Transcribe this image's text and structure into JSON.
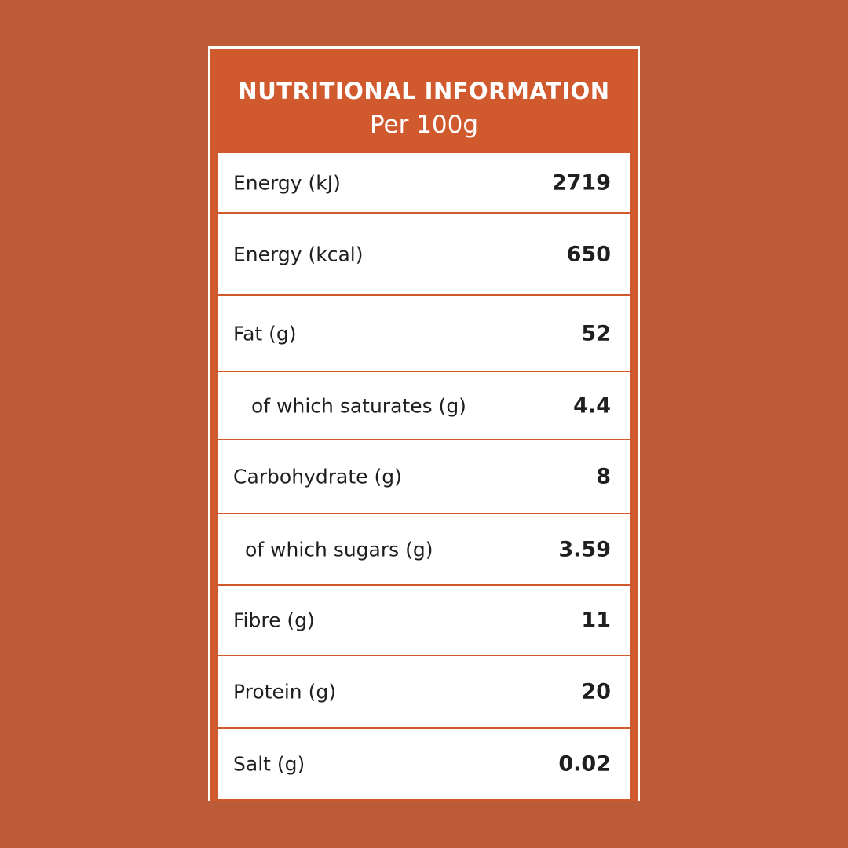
{
  "header": {
    "title": "NUTRITIONAL INFORMATION",
    "subtitle": "Per 100g"
  },
  "rows": [
    {
      "label": "Energy (kJ)",
      "value": "2719"
    },
    {
      "label": "Energy (kcal)",
      "value": "650"
    },
    {
      "label": "Fat (g)",
      "value": "52"
    },
    {
      "label": "of which saturates (g)",
      "value": "4.4"
    },
    {
      "label": "Carbohydrate (g)",
      "value": "8"
    },
    {
      "label": "of which sugars (g)",
      "value": "3.59"
    },
    {
      "label": "Fibre (g)",
      "value": "11"
    },
    {
      "label": "Protein (g)",
      "value": "20"
    },
    {
      "label": "Salt (g)",
      "value": "0.02"
    }
  ],
  "colors": {
    "background": "#bd5b38",
    "accent": "#d0592e",
    "table_background": "#ffffff",
    "text": "#1f1f1f"
  }
}
